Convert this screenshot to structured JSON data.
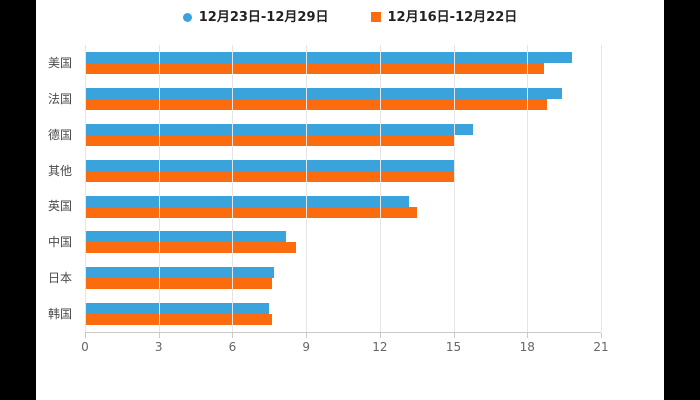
{
  "chart_data": {
    "type": "bar",
    "orientation": "horizontal",
    "title": "",
    "categories": [
      "美国",
      "法国",
      "德国",
      "其他",
      "英国",
      "中国",
      "日本",
      "韩国"
    ],
    "series": [
      {
        "name": "12月23日-12月29日",
        "color": "#3BA3DC",
        "marker": "circle",
        "values": [
          19.8,
          19.4,
          15.8,
          15.0,
          13.2,
          8.2,
          7.7,
          7.5
        ]
      },
      {
        "name": "12月16日-12月22日",
        "color": "#FB6C0E",
        "marker": "square",
        "values": [
          18.7,
          18.8,
          15.0,
          15.0,
          13.5,
          8.6,
          7.6,
          7.6
        ]
      }
    ],
    "x_ticks": [
      0,
      3,
      6,
      9,
      12,
      15,
      18,
      21
    ],
    "xlim": [
      0,
      21
    ],
    "grid": true,
    "legend_position": "top",
    "background": "#ffffff"
  }
}
